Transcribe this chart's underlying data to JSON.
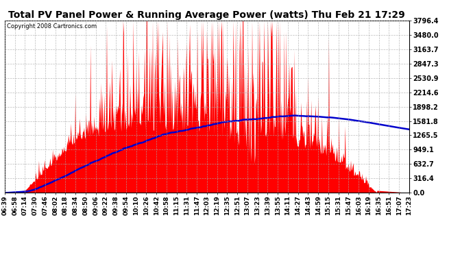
{
  "title": "Total PV Panel Power & Running Average Power (watts) Thu Feb 21 17:29",
  "copyright": "Copyright 2008 Cartronics.com",
  "background_color": "#ffffff",
  "plot_bg_color": "#ffffff",
  "bar_color": "#ff0000",
  "line_color": "#0000cc",
  "grid_color": "#aaaaaa",
  "yticks": [
    0.0,
    316.4,
    632.7,
    949.1,
    1265.5,
    1581.8,
    1898.2,
    2214.6,
    2530.9,
    2847.3,
    3163.7,
    3480.0,
    3796.4
  ],
  "ymax": 3796.4,
  "xtick_labels": [
    "06:39",
    "06:58",
    "07:14",
    "07:30",
    "07:46",
    "08:02",
    "08:18",
    "08:34",
    "08:50",
    "09:06",
    "09:22",
    "09:38",
    "09:54",
    "10:10",
    "10:26",
    "10:42",
    "10:58",
    "11:15",
    "11:31",
    "11:47",
    "12:03",
    "12:19",
    "12:35",
    "12:51",
    "13:07",
    "13:23",
    "13:39",
    "13:55",
    "14:11",
    "14:27",
    "14:43",
    "14:59",
    "15:15",
    "15:31",
    "15:47",
    "16:03",
    "16:19",
    "16:35",
    "16:51",
    "17:07",
    "17:23"
  ],
  "n_points": 644
}
